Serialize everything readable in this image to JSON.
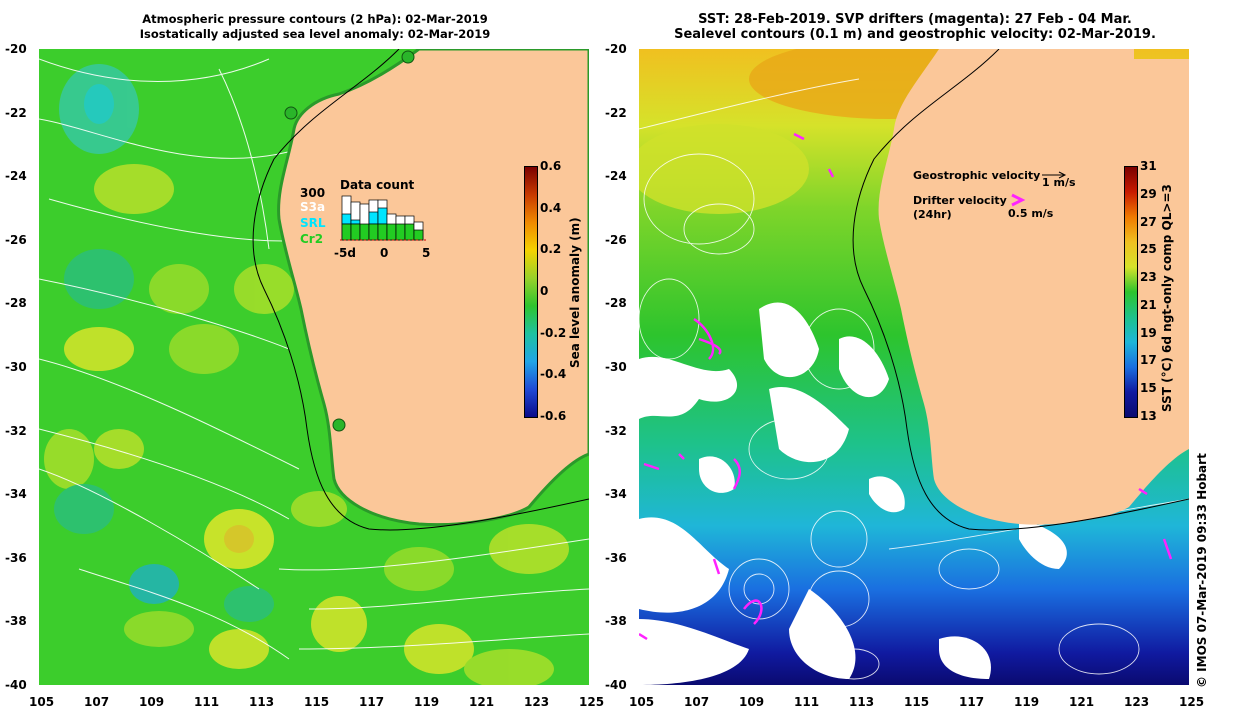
{
  "left_panel": {
    "title_line1": "Atmospheric pressure contours (2 hPa): 02-Mar-2019",
    "title_line2": "Isostatically adjusted sea level anomaly: 02-Mar-2019",
    "colorbar_label": "Sea level anomaly (m)",
    "colorbar_ticks": [
      "0.6",
      "0.4",
      "0.2",
      "0",
      "-0.2",
      "-0.4",
      "-0.6"
    ],
    "inset": {
      "title": "Data count",
      "max_label": "300",
      "legend": [
        {
          "label": "S3a",
          "color": "#ffffff"
        },
        {
          "label": "SRL",
          "color": "#00e5ff"
        },
        {
          "label": "Cr2",
          "color": "#22cc22"
        }
      ],
      "x_ticks": [
        "-5d",
        "0",
        "5"
      ]
    }
  },
  "right_panel": {
    "title_line1": "SST: 28-Feb-2019. SVP drifters (magenta): 27 Feb - 04 Mar.",
    "title_line2": "Sealevel contours (0.1 m) and geostrophic velocity: 02-Mar-2019.",
    "colorbar_label": "SST (°C) 6d ngt-only comp QL>=3",
    "colorbar_ticks": [
      "31",
      "29",
      "27",
      "25",
      "23",
      "21",
      "19",
      "17",
      "15",
      "13"
    ],
    "geo_label": "Geostrophic velocity",
    "geo_scale": "1 m/s",
    "drifter_label_1": "Drifter velocity",
    "drifter_label_2": "(24hr)",
    "drifter_scale": "0.5 m/s"
  },
  "y_ticks": [
    "-20",
    "-22",
    "-24",
    "-26",
    "-28",
    "-30",
    "-32",
    "-34",
    "-36",
    "-38",
    "-40"
  ],
  "x_ticks": [
    "105",
    "107",
    "109",
    "111",
    "113",
    "115",
    "117",
    "119",
    "121",
    "123",
    "125"
  ],
  "credit": "© IMOS 07-Mar-2019 09:33 Hobart",
  "colors": {
    "land": "#fbc799",
    "ocean_green": "#2fc42f",
    "drifter": "#ff22ff"
  }
}
